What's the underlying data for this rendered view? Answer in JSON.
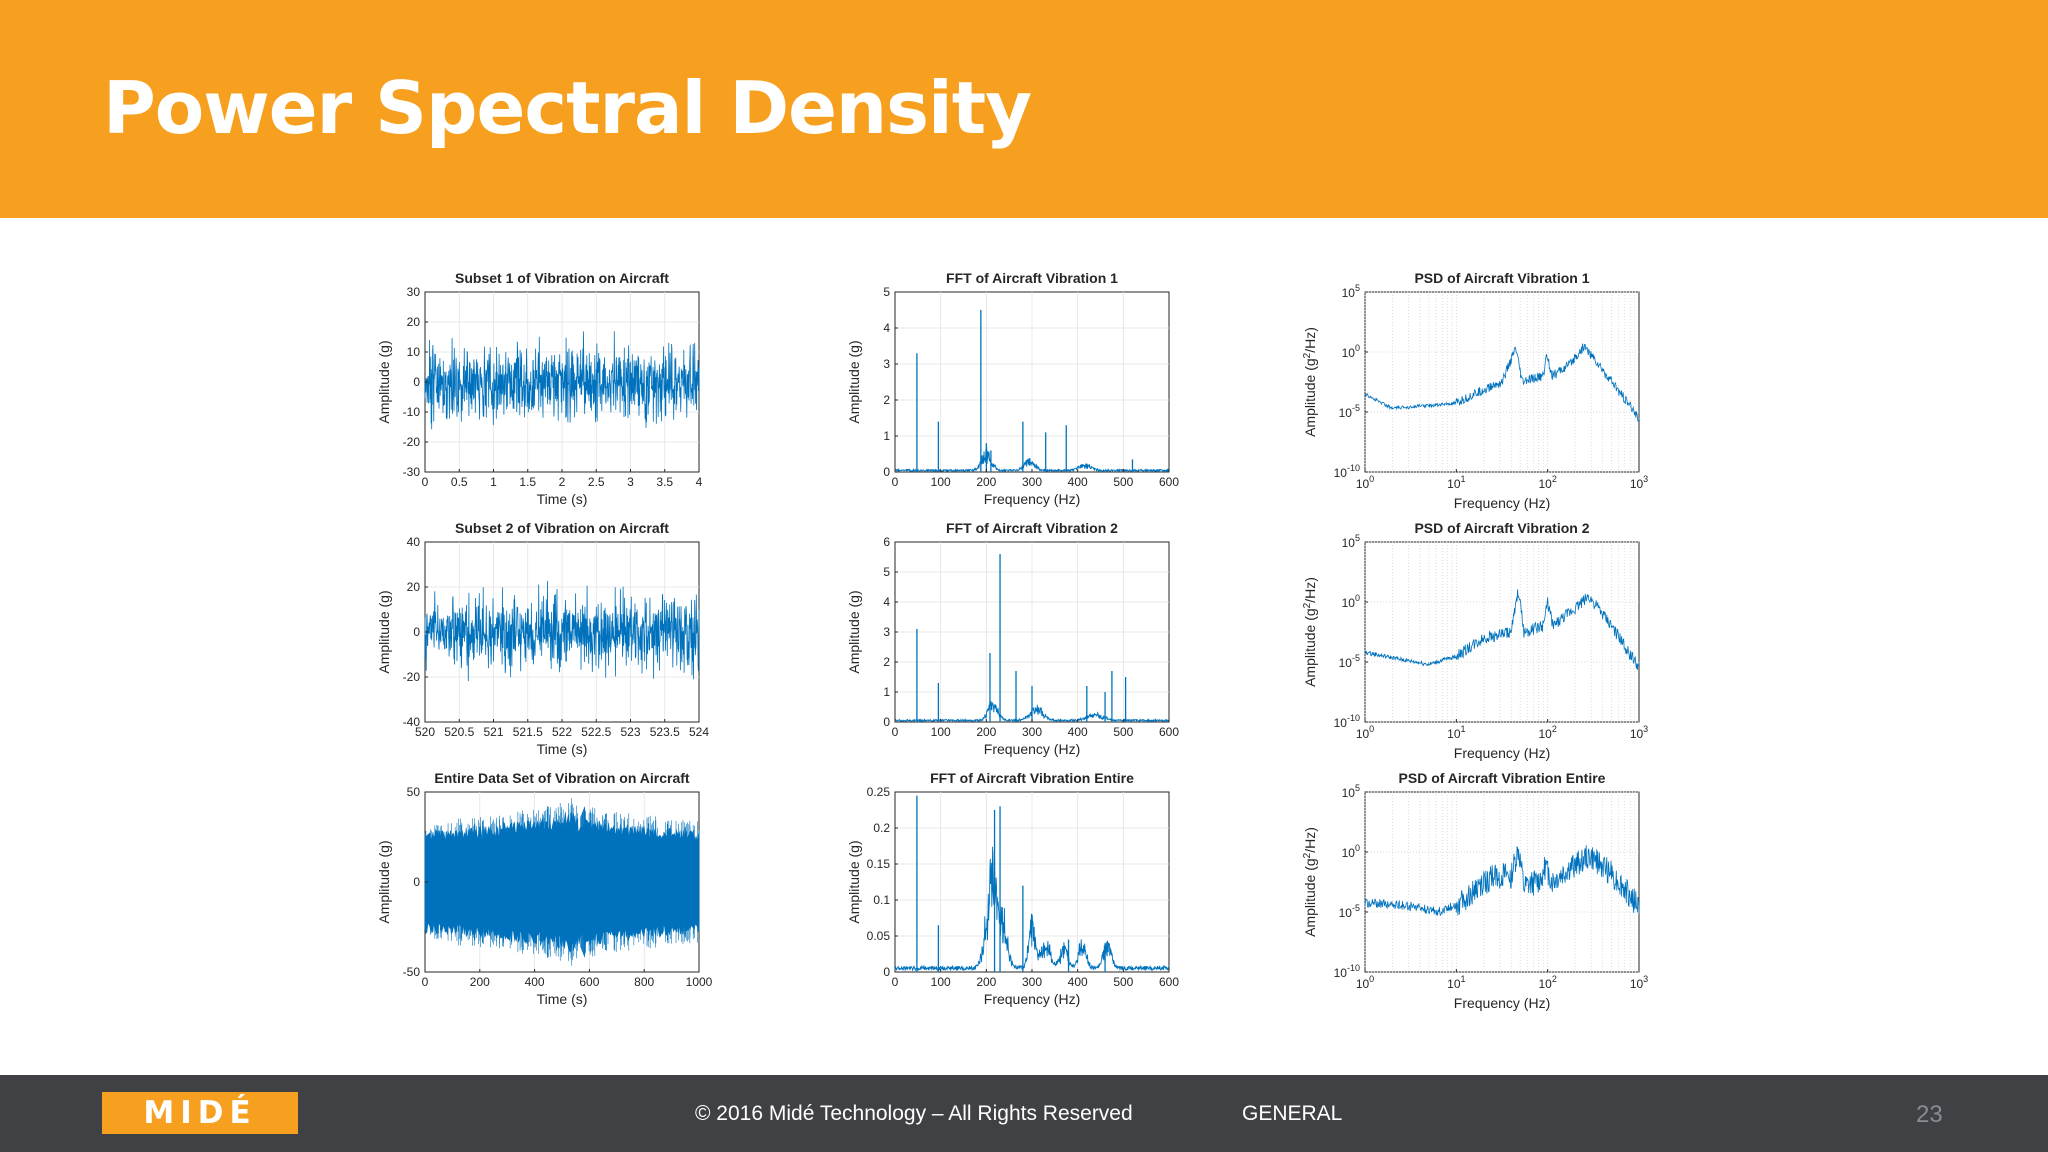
{
  "slide": {
    "title": "Power Spectral Density",
    "footer": {
      "logo_text": "MIDÉ",
      "copyright": "© 2016 Midé Technology – All Rights Reserved",
      "classification": "GENERAL",
      "page_number": "23"
    }
  },
  "colors": {
    "header": "#f7a020",
    "footer": "#404145",
    "series": "#0072bd"
  },
  "chart_data": [
    {
      "type": "line",
      "title": "Subset 1 of Vibration on Aircraft",
      "xlabel": "Time (s)",
      "ylabel": "Amplitude (g)",
      "xlim": [
        0,
        4
      ],
      "ylim": [
        -30,
        30
      ],
      "xticks": [
        "0",
        "0.5",
        "1",
        "1.5",
        "2",
        "2.5",
        "3",
        "3.5",
        "4"
      ],
      "yticks": [
        "-30",
        "-20",
        "-10",
        "0",
        "10",
        "20",
        "30"
      ],
      "signal": {
        "kind": "time",
        "envelope": [
          [
            0,
            9
          ],
          [
            4,
            9
          ]
        ],
        "peak": 14
      }
    },
    {
      "type": "line",
      "title": "FFT of Aircraft Vibration 1",
      "xlabel": "Frequency (Hz)",
      "ylabel": "Amplitude (g)",
      "xlim": [
        0,
        600
      ],
      "ylim": [
        0,
        5
      ],
      "xticks": [
        "0",
        "100",
        "200",
        "300",
        "400",
        "500",
        "600"
      ],
      "yticks": [
        "0",
        "1",
        "2",
        "3",
        "4",
        "5"
      ],
      "signal": {
        "kind": "fft",
        "noise": 0.05,
        "peaks": [
          [
            48,
            3.3
          ],
          [
            95,
            1.4
          ],
          [
            188,
            4.5
          ],
          [
            200,
            0.8
          ],
          [
            210,
            0.6
          ],
          [
            280,
            1.4
          ],
          [
            330,
            1.1
          ],
          [
            375,
            1.3
          ],
          [
            520,
            0.35
          ]
        ],
        "humps": [
          [
            200,
            0.5,
            15
          ],
          [
            295,
            0.3,
            15
          ],
          [
            415,
            0.15,
            20
          ]
        ]
      }
    },
    {
      "type": "line",
      "title": "PSD of Aircraft Vibration 1",
      "xlabel": "Frequency (Hz)",
      "ylabel": "Amplitude (g²/Hz)",
      "scale": "log",
      "xlim": [
        1,
        1000
      ],
      "ylim": [
        -10,
        5
      ],
      "xticks": [
        "10^0",
        "10^1",
        "10^2",
        "10^3"
      ],
      "yticks": [
        "10^-10",
        "10^-5",
        "10^0",
        "10^5"
      ],
      "signal": {
        "kind": "psd",
        "jitter": 0.8,
        "profile": [
          [
            0,
            -3.5
          ],
          [
            0.3,
            -4.7
          ],
          [
            0.6,
            -4.5
          ],
          [
            1.0,
            -4.3
          ],
          [
            1.2,
            -3.5
          ],
          [
            1.5,
            -2.5
          ],
          [
            1.65,
            0.3
          ],
          [
            1.72,
            -2.5
          ],
          [
            1.95,
            -2
          ],
          [
            1.99,
            -0.2
          ],
          [
            2.05,
            -2
          ],
          [
            2.25,
            -1
          ],
          [
            2.4,
            0.5
          ],
          [
            2.6,
            -1.5
          ],
          [
            3.0,
            -5.5
          ]
        ]
      }
    },
    {
      "type": "line",
      "title": "Subset 2 of Vibration on Aircraft",
      "xlabel": "Time (s)",
      "ylabel": "Amplitude (g)",
      "xlim": [
        520,
        524
      ],
      "ylim": [
        -40,
        40
      ],
      "xticks": [
        "520",
        "520.5",
        "521",
        "521.5",
        "522",
        "522.5",
        "523",
        "523.5",
        "524"
      ],
      "yticks": [
        "-40",
        "-20",
        "0",
        "20",
        "40"
      ],
      "signal": {
        "kind": "time",
        "envelope": [
          [
            520,
            12
          ],
          [
            524,
            12
          ]
        ],
        "peak": 20
      }
    },
    {
      "type": "line",
      "title": "FFT of Aircraft Vibration 2",
      "xlabel": "Frequency (Hz)",
      "ylabel": "Amplitude (g)",
      "xlim": [
        0,
        600
      ],
      "ylim": [
        0,
        6
      ],
      "xticks": [
        "0",
        "100",
        "200",
        "300",
        "400",
        "500",
        "600"
      ],
      "yticks": [
        "0",
        "1",
        "2",
        "3",
        "4",
        "5",
        "6"
      ],
      "signal": {
        "kind": "fft",
        "noise": 0.06,
        "peaks": [
          [
            48,
            3.1
          ],
          [
            95,
            1.3
          ],
          [
            208,
            2.3
          ],
          [
            230,
            5.6
          ],
          [
            265,
            1.7
          ],
          [
            300,
            1.2
          ],
          [
            420,
            1.2
          ],
          [
            460,
            1.0
          ],
          [
            475,
            1.7
          ],
          [
            505,
            1.5
          ]
        ],
        "humps": [
          [
            215,
            0.6,
            15
          ],
          [
            310,
            0.4,
            20
          ],
          [
            440,
            0.2,
            25
          ]
        ]
      }
    },
    {
      "type": "line",
      "title": "PSD of Aircraft Vibration 2",
      "xlabel": "Frequency (Hz)",
      "ylabel": "Amplitude (g²/Hz)",
      "scale": "log",
      "xlim": [
        1,
        1000
      ],
      "ylim": [
        -10,
        5
      ],
      "xticks": [
        "10^0",
        "10^1",
        "10^2",
        "10^3"
      ],
      "yticks": [
        "10^-10",
        "10^-5",
        "10^0",
        "10^5"
      ],
      "signal": {
        "kind": "psd",
        "jitter": 1.0,
        "profile": [
          [
            0,
            -4.2
          ],
          [
            0.4,
            -4.8
          ],
          [
            0.7,
            -5.2
          ],
          [
            1.0,
            -4.5
          ],
          [
            1.3,
            -3
          ],
          [
            1.6,
            -2.5
          ],
          [
            1.68,
            1
          ],
          [
            1.74,
            -2.5
          ],
          [
            1.95,
            -2
          ],
          [
            2.0,
            0
          ],
          [
            2.06,
            -2
          ],
          [
            2.3,
            -0.5
          ],
          [
            2.45,
            0.5
          ],
          [
            2.7,
            -2
          ],
          [
            3.0,
            -5.5
          ]
        ]
      }
    },
    {
      "type": "area",
      "title": "Entire Data Set of Vibration on Aircraft",
      "xlabel": "Time (s)",
      "ylabel": "Amplitude (g)",
      "xlim": [
        0,
        1000
      ],
      "ylim": [
        -50,
        50
      ],
      "xticks": [
        "0",
        "200",
        "400",
        "600",
        "800",
        "1000"
      ],
      "yticks": [
        "-50",
        "0",
        "50"
      ],
      "signal": {
        "kind": "band",
        "envelope": [
          [
            0,
            26
          ],
          [
            200,
            28
          ],
          [
            400,
            32
          ],
          [
            480,
            33
          ],
          [
            530,
            37
          ],
          [
            560,
            33
          ],
          [
            700,
            30
          ],
          [
            850,
            28
          ],
          [
            980,
            26
          ]
        ]
      }
    },
    {
      "type": "line",
      "title": "FFT of Aircraft Vibration Entire",
      "xlabel": "Frequency (Hz)",
      "ylabel": "Amplitude (g)",
      "xlim": [
        0,
        600
      ],
      "ylim": [
        0,
        0.25
      ],
      "xticks": [
        "0",
        "100",
        "200",
        "300",
        "400",
        "500",
        "600"
      ],
      "yticks": [
        "0",
        "0.05",
        "0.1",
        "0.15",
        "0.2",
        "0.25"
      ],
      "signal": {
        "kind": "fft",
        "noise": 0.006,
        "peaks": [
          [
            48,
            0.245
          ],
          [
            95,
            0.065
          ],
          [
            218,
            0.225
          ],
          [
            230,
            0.23
          ],
          [
            280,
            0.12
          ],
          [
            380,
            0.045
          ],
          [
            460,
            0.04
          ]
        ],
        "humps": [
          [
            205,
            0.08,
            14
          ],
          [
            218,
            0.12,
            10
          ],
          [
            238,
            0.07,
            12
          ],
          [
            300,
            0.06,
            10
          ],
          [
            330,
            0.035,
            15
          ],
          [
            370,
            0.03,
            12
          ],
          [
            410,
            0.035,
            12
          ],
          [
            465,
            0.035,
            12
          ]
        ]
      }
    },
    {
      "type": "line",
      "title": "PSD of Aircraft Vibration Entire",
      "xlabel": "Frequency (Hz)",
      "ylabel": "Amplitude (g²/Hz)",
      "scale": "log",
      "xlim": [
        1,
        1000
      ],
      "ylim": [
        -10,
        5
      ],
      "xticks": [
        "10^0",
        "10^1",
        "10^2",
        "10^3"
      ],
      "yticks": [
        "10^-10",
        "10^-5",
        "10^0",
        "10^5"
      ],
      "signal": {
        "kind": "psd",
        "jitter": 2.2,
        "profile": [
          [
            0,
            -4.2
          ],
          [
            0.5,
            -4.5
          ],
          [
            0.8,
            -5
          ],
          [
            1.1,
            -4
          ],
          [
            1.4,
            -2
          ],
          [
            1.6,
            -2
          ],
          [
            1.68,
            0.2
          ],
          [
            1.74,
            -3
          ],
          [
            1.9,
            -2.5
          ],
          [
            1.98,
            -1.2
          ],
          [
            2.05,
            -2.5
          ],
          [
            2.3,
            -1
          ],
          [
            2.45,
            -0.3
          ],
          [
            2.7,
            -1.8
          ],
          [
            3.0,
            -4.5
          ]
        ]
      }
    }
  ]
}
